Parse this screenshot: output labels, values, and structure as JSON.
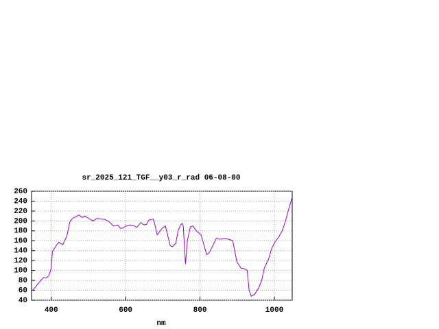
{
  "chart_data": {
    "type": "line",
    "title": "sr_2025_121_TGF__y03_r_rad 06-08-00",
    "x_label": "nm",
    "xlim": [
      347,
      1048
    ],
    "xticks": [
      400,
      600,
      800,
      1000
    ],
    "ylim": [
      40,
      260
    ],
    "yticks": [
      40,
      60,
      80,
      100,
      120,
      140,
      160,
      180,
      200,
      220,
      240,
      260
    ],
    "grid": true,
    "series": [
      {
        "color": "#9400d3",
        "x": [
          350,
          372,
          379,
          387,
          394,
          400,
          403,
          413,
          420,
          431,
          442,
          450,
          457,
          464,
          475,
          483,
          490,
          501,
          512,
          523,
          534,
          545,
          556,
          567,
          579,
          586,
          593,
          601,
          612,
          623,
          630,
          641,
          649,
          656,
          663,
          674,
          678,
          685,
          698,
          707,
          720,
          726,
          735,
          741,
          748,
          752,
          755,
          761,
          766,
          774,
          781,
          790,
          803,
          818,
          824,
          833,
          844,
          855,
          866,
          877,
          888,
          899,
          910,
          921,
          927,
          932,
          938,
          947,
          958,
          966,
          973,
          984,
          993,
          1002,
          1012,
          1021,
          1030,
          1039,
          1048
        ],
        "values": [
          60,
          80,
          86,
          85,
          90,
          105,
          138,
          150,
          157,
          152,
          170,
          198,
          205,
          208,
          212,
          207,
          210,
          205,
          200,
          205,
          204,
          203,
          198,
          190,
          192,
          185,
          186,
          190,
          192,
          190,
          187,
          197,
          192,
          193,
          202,
          204,
          195,
          172,
          185,
          190,
          150,
          148,
          155,
          180,
          192,
          195,
          190,
          113,
          160,
          188,
          190,
          180,
          172,
          132,
          135,
          148,
          165,
          163,
          165,
          163,
          160,
          118,
          105,
          103,
          100,
          60,
          48,
          52,
          65,
          80,
          105,
          122,
          145,
          158,
          168,
          180,
          200,
          225,
          248
        ]
      }
    ]
  }
}
